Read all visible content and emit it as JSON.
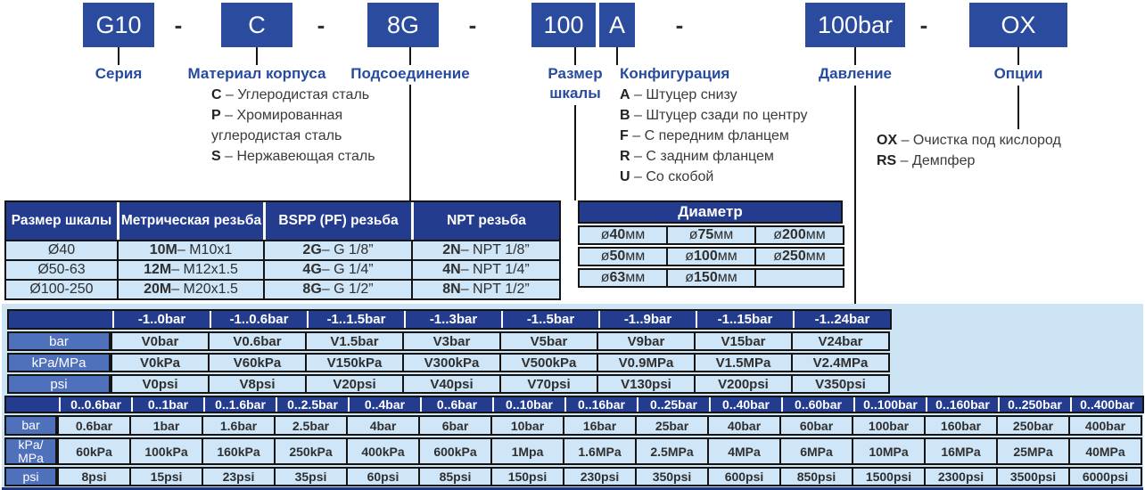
{
  "colors": {
    "accent_blue": "#274b9f",
    "code_box": "#2a4b9e",
    "table_header": "#233c8e",
    "row_label": "#4f70ba",
    "cell_bg": "#cfe6f8",
    "panel_bg": "#cde4f5",
    "line": "#141414"
  },
  "order_code": {
    "separator": "-"
  },
  "fields": [
    {
      "code": "G10",
      "label": "Серия",
      "options": []
    },
    {
      "code": "C",
      "label": "Материал корпуса",
      "options": [
        "C – Углеродистая сталь",
        "P – Хромированная углеродистая сталь",
        "S – Нержавеющая сталь"
      ]
    },
    {
      "code": "8G",
      "label": "Подсоединение",
      "options": []
    },
    {
      "code": "100",
      "label": "Размер шкалы",
      "options": []
    },
    {
      "code": "A",
      "label": "Конфигурация",
      "options": [
        "A – Штуцер снизу",
        "B – Штуцер сзади по центру",
        "F – С передним фланцем",
        "R – С задним фланцем",
        "U – Со скобой"
      ]
    },
    {
      "code": "100bar",
      "label": "Давление",
      "options": []
    },
    {
      "code": "OX",
      "label": "Опции",
      "options": [
        "OX – Очистка под кислород",
        "RS – Демпфер"
      ]
    }
  ],
  "thread_table": {
    "headers": [
      "Размер шкалы",
      "Метрическая резьба",
      "BSPP (PF) резьба",
      "NPT резьба"
    ],
    "rows": [
      [
        "Ø40",
        "10M – M10x1",
        "2G – G 1/8”",
        "2N – NPT 1/8”"
      ],
      [
        "Ø50-63",
        "12M – M12x1.5",
        "4G – G 1/4”",
        "4N – NPT 1/4”"
      ],
      [
        "Ø100-250",
        "20M – M20x1.5",
        "8G – G 1/2”",
        "8N – NPT 1/2”"
      ]
    ]
  },
  "diameter_table": {
    "title": "Диаметр",
    "rows": [
      [
        "ø40мм",
        "ø75мм",
        "ø200мм"
      ],
      [
        "ø50мм",
        "ø100мм",
        "ø250мм"
      ],
      [
        "ø63мм",
        "ø150мм",
        ""
      ]
    ]
  },
  "vacuum_table": {
    "col_headers": [
      "-1..0bar",
      "-1..0.6bar",
      "-1..1.5bar",
      "-1..3bar",
      "-1..5bar",
      "-1..9bar",
      "-1..15bar",
      "-1..24bar"
    ],
    "row_labels": [
      "bar",
      "kPa/MPa",
      "psi"
    ],
    "rows": [
      [
        "V0bar",
        "V0.6bar",
        "V1.5bar",
        "V3bar",
        "V5bar",
        "V9bar",
        "V15bar",
        "V24bar"
      ],
      [
        "V0kPa",
        "V60kPa",
        "V150kPa",
        "V300kPa",
        "V500kPa",
        "V0.9MPa",
        "V1.5MPa",
        "V2.4MPa"
      ],
      [
        "V0psi",
        "V8psi",
        "V20psi",
        "V40psi",
        "V70psi",
        "V130psi",
        "V200psi",
        "V350psi"
      ]
    ]
  },
  "pressure_table": {
    "col_headers": [
      "0..0.6bar",
      "0..1bar",
      "0..1.6bar",
      "0..2.5bar",
      "0..4bar",
      "0..6bar",
      "0..10bar",
      "0..16bar",
      "0..25bar",
      "0..40bar",
      "0..60bar",
      "0..100bar",
      "0..160bar",
      "0..250bar",
      "0..400bar"
    ],
    "row_labels": [
      "bar",
      "kPa/MPa",
      "psi"
    ],
    "rows": [
      [
        "0.6bar",
        "1bar",
        "1.6bar",
        "2.5bar",
        "4bar",
        "6bar",
        "10bar",
        "16bar",
        "25bar",
        "40bar",
        "60bar",
        "100bar",
        "160bar",
        "250bar",
        "400bar"
      ],
      [
        "60kPa",
        "100kPa",
        "160kPa",
        "250kPa",
        "400kPa",
        "600kPa",
        "1Mpa",
        "1.6MPa",
        "2.5MPa",
        "4MPa",
        "6MPa",
        "10MPa",
        "16MPa",
        "25MPa",
        "40MPa"
      ],
      [
        "8psi",
        "15psi",
        "23psi",
        "35psi",
        "60psi",
        "85psi",
        "150psi",
        "230psi",
        "350psi",
        "600psi",
        "850psi",
        "1500psi",
        "2300psi",
        "3500psi",
        "6000psi"
      ]
    ]
  }
}
